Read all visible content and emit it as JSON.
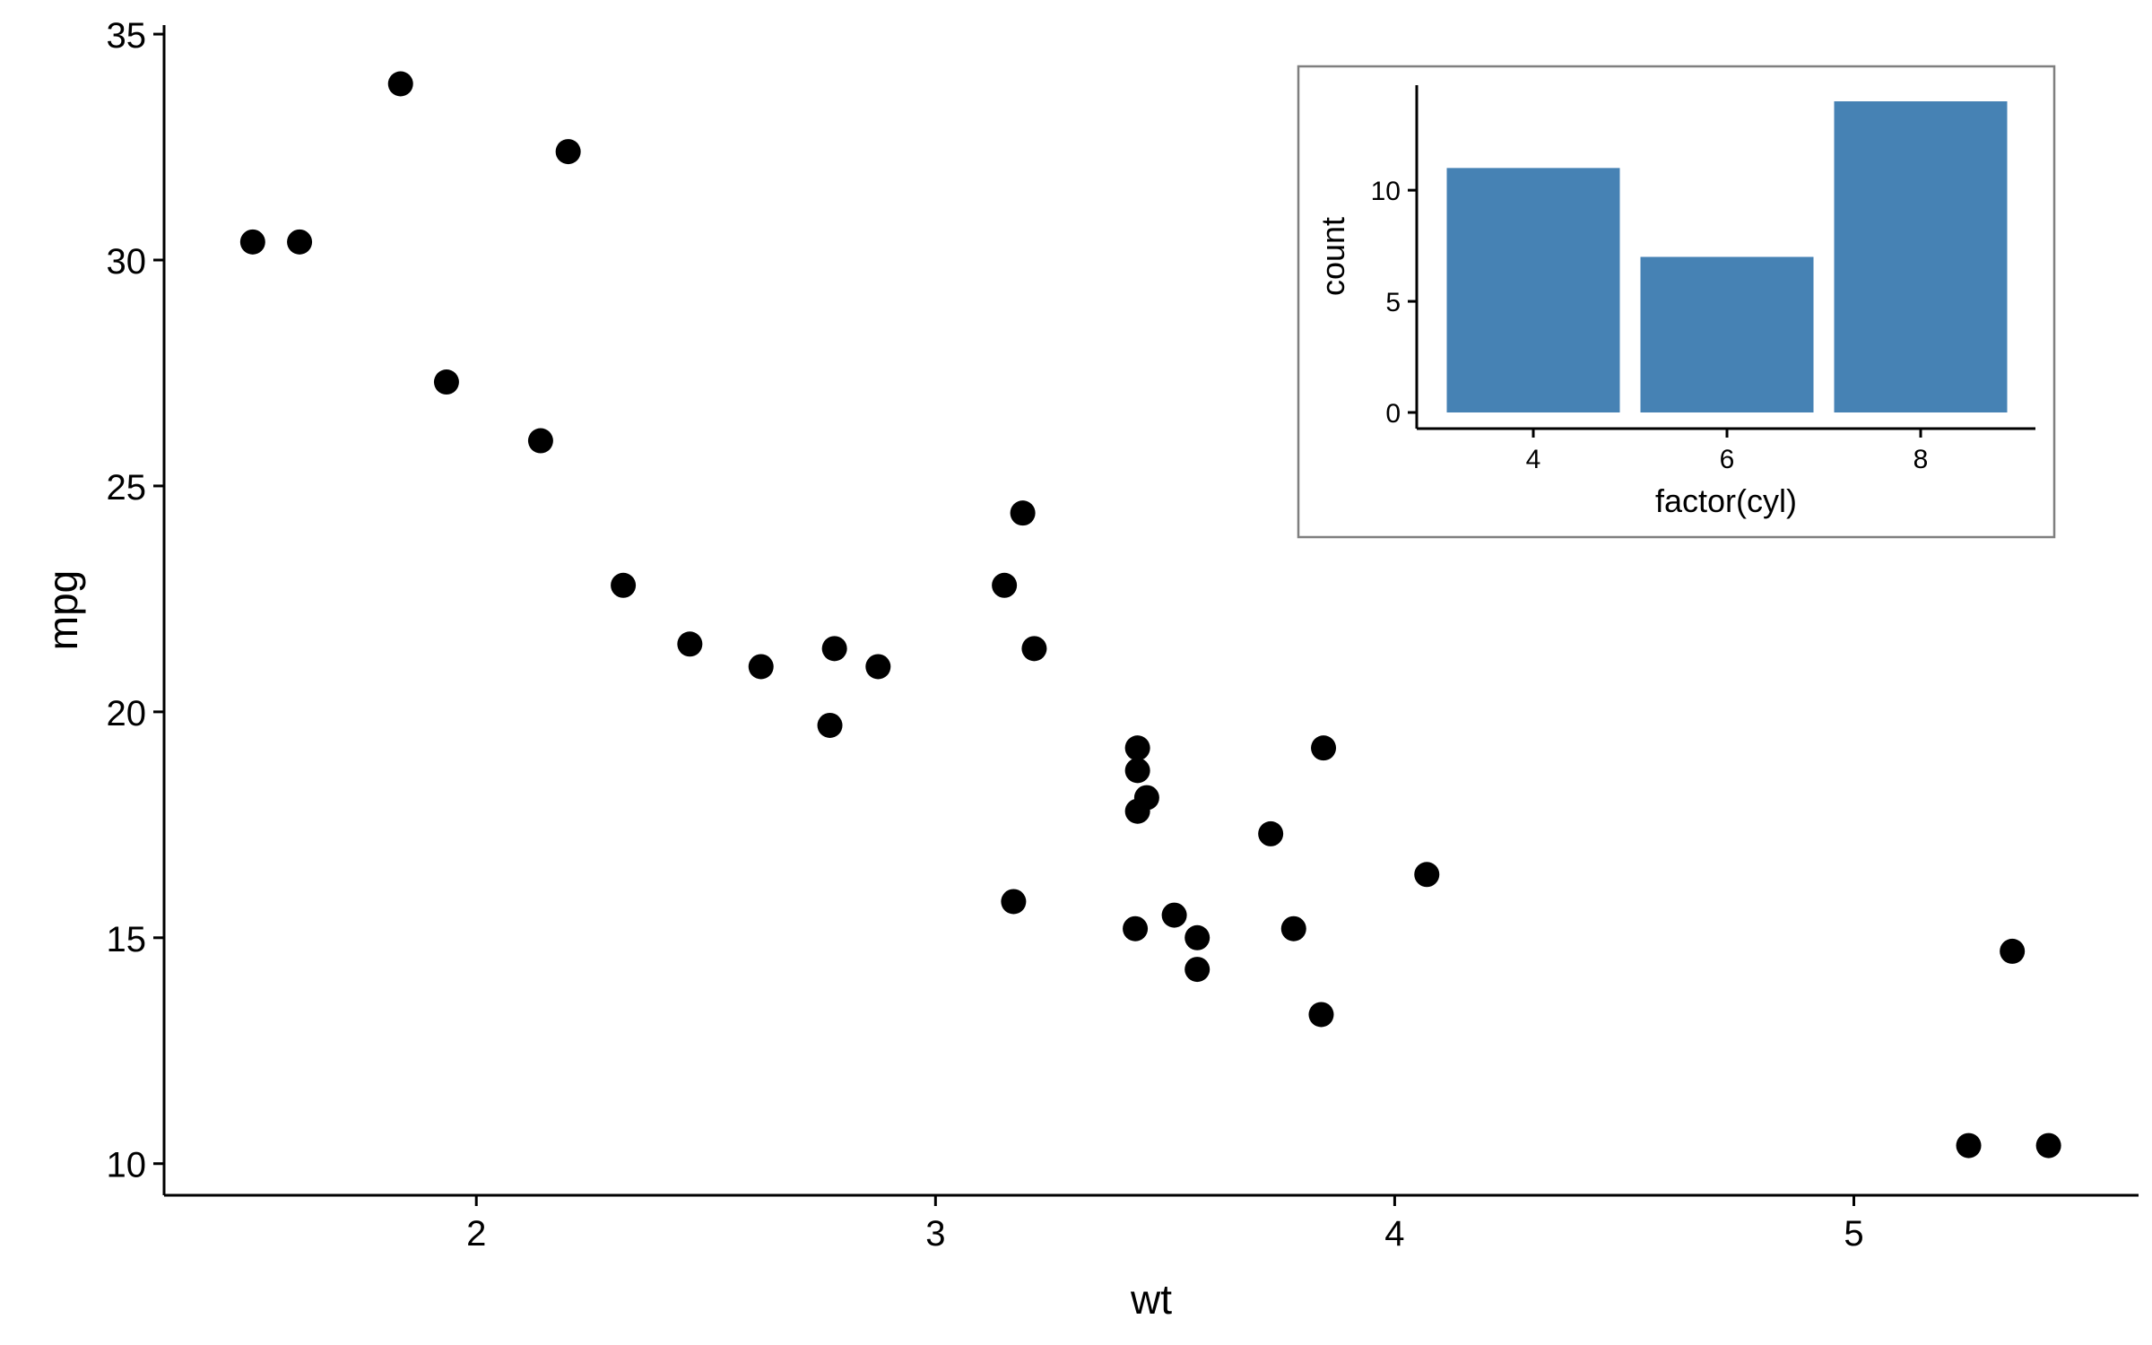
{
  "chart_data": [
    {
      "type": "scatter",
      "xlabel": "wt",
      "ylabel": "mpg",
      "xlim": [
        1.32,
        5.62
      ],
      "ylim": [
        9.3,
        35.2
      ],
      "xticks": [
        2,
        3,
        4,
        5
      ],
      "yticks": [
        10,
        15,
        20,
        25,
        30,
        35
      ],
      "grid": false,
      "point_color": "#000000",
      "points": [
        {
          "x": 2.62,
          "y": 21.0
        },
        {
          "x": 2.875,
          "y": 21.0
        },
        {
          "x": 2.32,
          "y": 22.8
        },
        {
          "x": 3.215,
          "y": 21.4
        },
        {
          "x": 3.44,
          "y": 18.7
        },
        {
          "x": 3.46,
          "y": 18.1
        },
        {
          "x": 3.57,
          "y": 14.3
        },
        {
          "x": 3.19,
          "y": 24.4
        },
        {
          "x": 3.15,
          "y": 22.8
        },
        {
          "x": 3.44,
          "y": 19.2
        },
        {
          "x": 3.44,
          "y": 17.8
        },
        {
          "x": 4.07,
          "y": 16.4
        },
        {
          "x": 3.73,
          "y": 17.3
        },
        {
          "x": 3.78,
          "y": 15.2
        },
        {
          "x": 5.25,
          "y": 10.4
        },
        {
          "x": 5.424,
          "y": 10.4
        },
        {
          "x": 5.345,
          "y": 14.7
        },
        {
          "x": 2.2,
          "y": 32.4
        },
        {
          "x": 1.615,
          "y": 30.4
        },
        {
          "x": 1.835,
          "y": 33.9
        },
        {
          "x": 2.465,
          "y": 21.5
        },
        {
          "x": 3.52,
          "y": 15.5
        },
        {
          "x": 3.435,
          "y": 15.2
        },
        {
          "x": 3.84,
          "y": 13.3
        },
        {
          "x": 3.845,
          "y": 19.2
        },
        {
          "x": 1.935,
          "y": 27.3
        },
        {
          "x": 2.14,
          "y": 26.0
        },
        {
          "x": 1.513,
          "y": 30.4
        },
        {
          "x": 3.17,
          "y": 15.8
        },
        {
          "x": 2.77,
          "y": 19.7
        },
        {
          "x": 3.57,
          "y": 15.0
        },
        {
          "x": 2.78,
          "y": 21.4
        }
      ]
    },
    {
      "type": "bar",
      "xlabel": "factor(cyl)",
      "ylabel": "count",
      "categories": [
        "4",
        "6",
        "8"
      ],
      "values": [
        11,
        7,
        14
      ],
      "ylim": [
        0,
        14.7
      ],
      "yticks": [
        0,
        5,
        10
      ],
      "grid": false,
      "bar_color": "#4682B4",
      "legend": "none",
      "placement": "top-right inset"
    }
  ]
}
